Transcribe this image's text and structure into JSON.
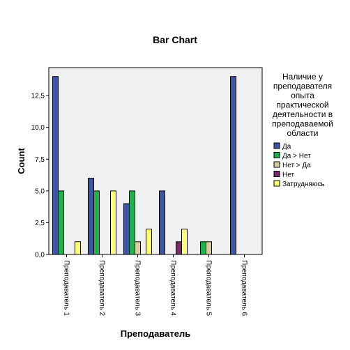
{
  "chart_data": {
    "type": "bar",
    "title": "Bar Chart",
    "xlabel": "Преподаватель",
    "ylabel": "Count",
    "ylim": [
      0,
      14.7
    ],
    "yticks": [
      "0,0",
      "2,5",
      "5,0",
      "7,5",
      "10,0",
      "12,5"
    ],
    "ytick_values": [
      0,
      2.5,
      5,
      7.5,
      10,
      12.5
    ],
    "categories": [
      "Преподаватель 1",
      "Преподаватель 2",
      "Преподаватель 3",
      "Преподаватель 4",
      "Преподаватель 5",
      "Преподаватель 6"
    ],
    "legend_title": [
      "Наличие у",
      "преподавателя",
      "опыта",
      "практической",
      "деятельности в",
      "преподаваемой",
      "области"
    ],
    "legend_position": "right",
    "grid": false,
    "series": [
      {
        "name": "Да",
        "color": "#3C56A5",
        "values": [
          14,
          6,
          4,
          5,
          0,
          14
        ]
      },
      {
        "name": "Да > Нет",
        "color": "#22B14C",
        "values": [
          5,
          5,
          5,
          0,
          1,
          0
        ]
      },
      {
        "name": "Нет > Да",
        "color": "#D6CCA0",
        "values": [
          0,
          0,
          1,
          0,
          1,
          0
        ]
      },
      {
        "name": "Нет",
        "color": "#7B2A6E",
        "values": [
          0,
          0,
          0,
          1,
          0,
          0
        ]
      },
      {
        "name": "Затрудняюсь",
        "color": "#FFFF73",
        "values": [
          1,
          5,
          2,
          2,
          0,
          0
        ]
      }
    ]
  }
}
